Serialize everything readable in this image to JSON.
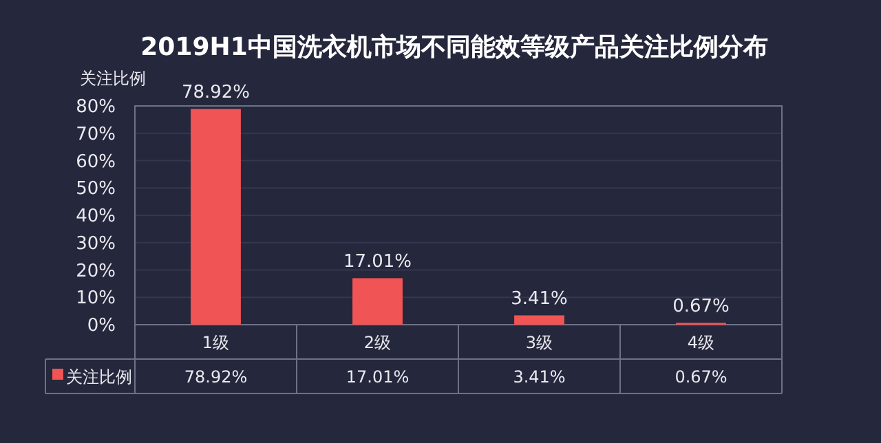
{
  "chart_data": {
    "type": "bar",
    "title": "2019H1中国洗衣机市场不同能效等级产品关注比例分布",
    "ylabel": "关注比例",
    "categories": [
      "1级",
      "2级",
      "3级",
      "4级"
    ],
    "series": [
      {
        "name": "关注比例",
        "color": "#f05454",
        "values": [
          78.92,
          17.01,
          3.41,
          0.67
        ],
        "value_labels": [
          "78.92%",
          "17.01%",
          "3.41%",
          "0.67%"
        ]
      }
    ],
    "ylim": [
      0,
      80
    ],
    "yticks": [
      {
        "value": 0,
        "label": "0%"
      },
      {
        "value": 10,
        "label": "10%"
      },
      {
        "value": 20,
        "label": "20%"
      },
      {
        "value": 30,
        "label": "30%"
      },
      {
        "value": 40,
        "label": "40%"
      },
      {
        "value": 50,
        "label": "50%"
      },
      {
        "value": 60,
        "label": "60%"
      },
      {
        "value": 70,
        "label": "70%"
      },
      {
        "value": 80,
        "label": "80%"
      }
    ],
    "grid": "y",
    "legend": "bottom left"
  }
}
